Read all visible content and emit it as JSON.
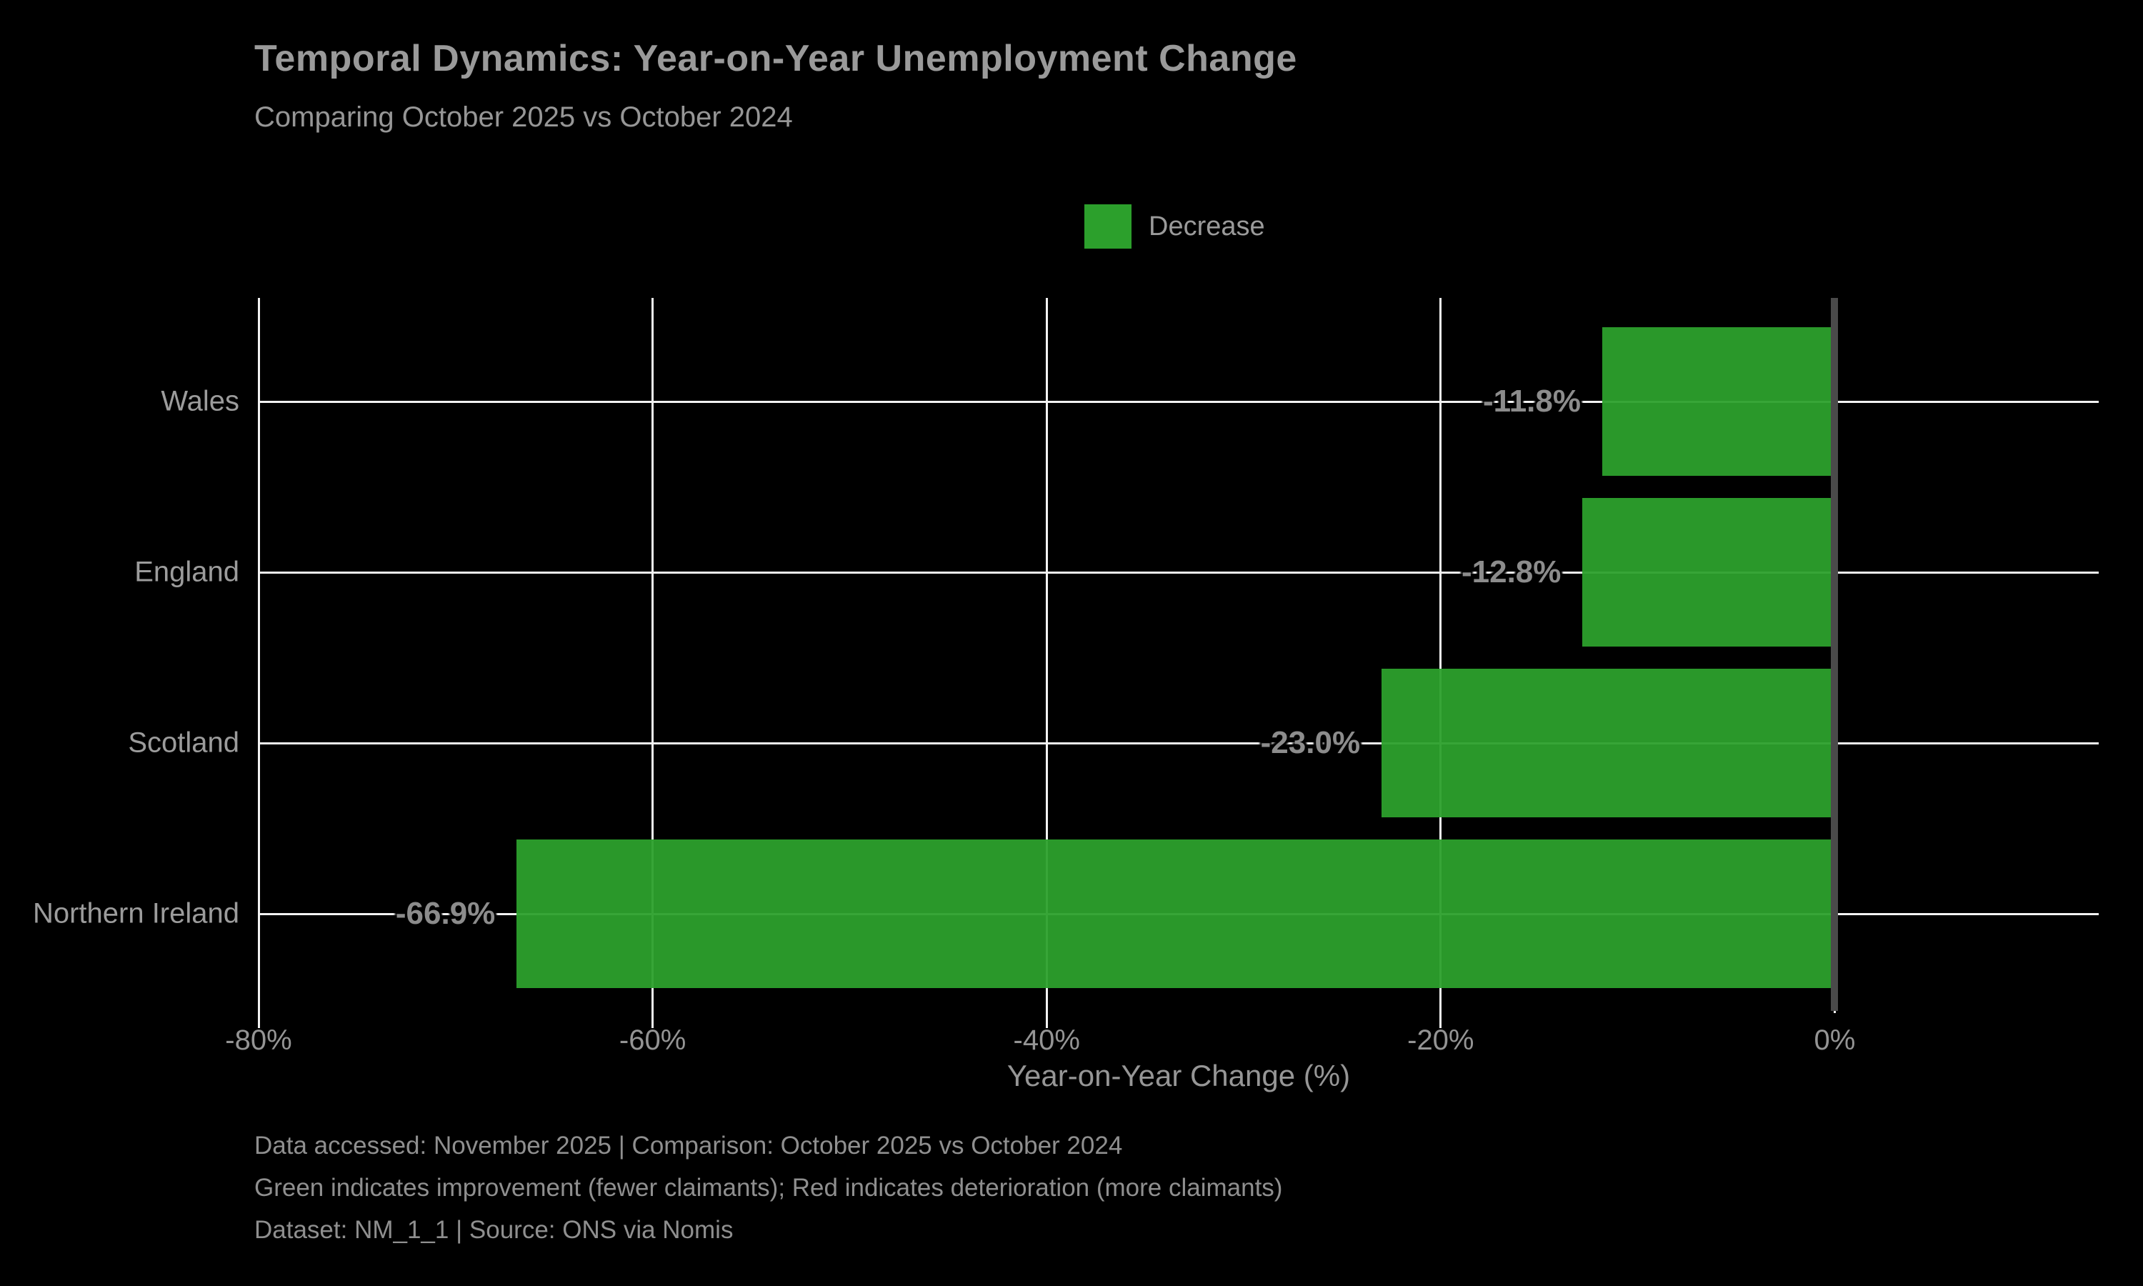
{
  "title": "Temporal Dynamics: Year-on-Year Unemployment Change",
  "subtitle": "Comparing October 2025 vs October 2024",
  "legend": {
    "label": "Decrease",
    "color": "#2ca02c"
  },
  "chart_data": {
    "type": "bar",
    "orientation": "horizontal",
    "title": "Temporal Dynamics: Year-on-Year Unemployment Change",
    "subtitle": "Comparing October 2025 vs October 2024",
    "categories": [
      "Wales",
      "England",
      "Scotland",
      "Northern Ireland"
    ],
    "values": [
      -11.8,
      -12.8,
      -23.0,
      -66.9
    ],
    "value_labels": [
      "-11.8%",
      "-12.8%",
      "-23.0%",
      "-66.9%"
    ],
    "bar_color": "#2ca02c",
    "xlabel": "Year-on-Year Change (%)",
    "xlim": [
      -80,
      13.4
    ],
    "xticks": {
      "values": [
        -80,
        -60,
        -40,
        -20,
        0
      ],
      "labels": [
        "-80%",
        "-60%",
        "-40%",
        "-20%",
        "0%"
      ]
    },
    "grid": true,
    "zero_line": true,
    "legend_position": "upper center",
    "legend_entries": [
      {
        "label": "Decrease",
        "color": "#2ca02c"
      }
    ]
  },
  "footnotes": [
    "Data accessed: November 2025 | Comparison: October 2025 vs October 2024",
    "Green indicates improvement (fewer claimants); Red indicates deterioration (more claimants)",
    "Dataset: NM_1_1 | Source: ONS via Nomis"
  ],
  "colors": {
    "background": "#000000",
    "bar_green": "#2ca02c",
    "gridline": "#f2f2f2",
    "zero_line": "#4a4a4a",
    "title_text": "#9a9a9a",
    "body_text": "#969696",
    "value_label_text": "#8c8c8c"
  }
}
